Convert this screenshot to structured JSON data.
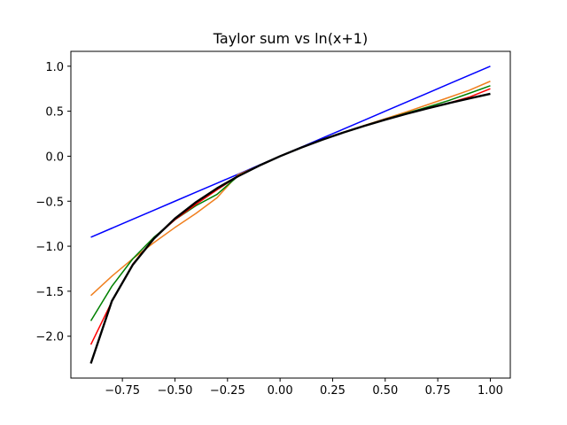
{
  "chart_data": {
    "type": "line",
    "title": "Taylor sum vs ln(x+1)",
    "xlabel": "",
    "ylabel": "",
    "xlim": [
      -0.995,
      1.095
    ],
    "ylim": [
      -2.465,
      1.165
    ],
    "grid": false,
    "legend": "none",
    "x_ticks": [
      -0.75,
      -0.5,
      -0.25,
      0.0,
      0.25,
      0.5,
      0.75,
      1.0
    ],
    "x_tick_labels": [
      "−0.75",
      "−0.50",
      "−0.25",
      "0.00",
      "0.25",
      "0.50",
      "0.75",
      "1.00"
    ],
    "y_ticks": [
      -2.0,
      -1.5,
      -1.0,
      -0.5,
      0.0,
      0.5,
      1.0
    ],
    "y_tick_labels": [
      "−2.0",
      "−1.5",
      "−1.0",
      "−0.5",
      "0.0",
      "0.5",
      "1.0"
    ],
    "x": [
      -0.9,
      -0.8,
      -0.7,
      -0.6,
      -0.5,
      -0.4,
      -0.3,
      -0.2,
      -0.1,
      0.0,
      0.1,
      0.2,
      0.3,
      0.4,
      0.5,
      0.6,
      0.7,
      0.8,
      0.9,
      1.0
    ],
    "series": [
      {
        "color": "#0000ff",
        "width": 1.5,
        "values": [
          -0.9,
          -0.8,
          -0.7,
          -0.6,
          -0.5,
          -0.4,
          -0.3,
          -0.2,
          -0.1,
          0.0,
          0.1,
          0.2,
          0.3,
          0.4,
          0.5,
          0.6,
          0.7,
          0.8,
          0.9,
          1.0
        ]
      },
      {
        "color": "#f07f1e",
        "width": 1.5,
        "values": [
          -1.548,
          -1.333,
          -1.138,
          -0.96,
          -0.792,
          -0.635,
          -0.462,
          -0.205,
          -0.1053,
          0.0,
          0.0953,
          0.1827,
          0.264,
          0.341,
          0.417,
          0.492,
          0.571,
          0.651,
          0.733,
          0.833
        ]
      },
      {
        "color": "#008000",
        "width": 1.5,
        "values": [
          -1.829,
          -1.445,
          -1.138,
          -0.901,
          -0.706,
          -0.549,
          -0.424,
          -0.221,
          -0.1053,
          0.0,
          0.0953,
          0.1827,
          0.263,
          0.338,
          0.41,
          0.478,
          0.546,
          0.617,
          0.699,
          0.783
        ]
      },
      {
        "color": "#ff0000",
        "width": 1.5,
        "values": [
          -2.093,
          -1.615,
          -1.197,
          -0.912,
          -0.706,
          -0.534,
          -0.373,
          -0.223,
          -0.1054,
          0.0,
          0.0953,
          0.1823,
          0.2624,
          0.3365,
          0.4055,
          0.47,
          0.531,
          0.59,
          0.657,
          0.75
        ]
      },
      {
        "color": "#000000",
        "width": 2.4,
        "values": [
          -2.303,
          -1.609,
          -1.204,
          -0.916,
          -0.693,
          -0.511,
          -0.357,
          -0.223,
          -0.1054,
          0.0,
          0.0953,
          0.1823,
          0.2624,
          0.3365,
          0.4055,
          0.47,
          0.531,
          0.588,
          0.642,
          0.693
        ]
      }
    ]
  }
}
